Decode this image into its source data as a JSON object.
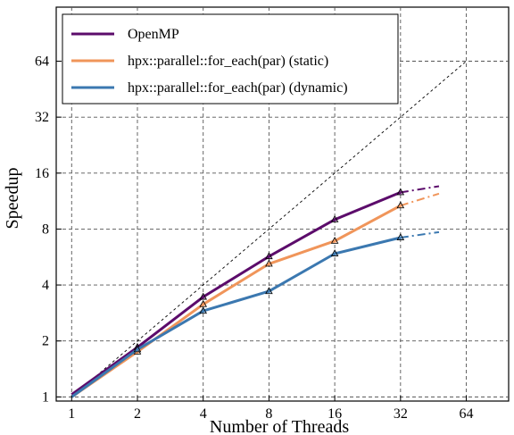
{
  "chart_data": {
    "type": "line",
    "title": "",
    "xlabel": "Number of Threads",
    "ylabel": "Speedup",
    "scale": {
      "x": "log2",
      "y": "log2"
    },
    "xlim": [
      0.85,
      100
    ],
    "ylim": [
      0.95,
      125
    ],
    "x_ticks": [
      1,
      2,
      4,
      8,
      16,
      32,
      64
    ],
    "x_tick_labels": [
      "1",
      "2",
      "4",
      "8",
      "16",
      "32",
      "64"
    ],
    "y_ticks": [
      1,
      2,
      4,
      8,
      16,
      32,
      64
    ],
    "y_tick_labels": [
      "1",
      "2",
      "4",
      "8",
      "16",
      "32",
      "64"
    ],
    "grid": true,
    "legend_position": "top-left",
    "ideal_line": {
      "x": [
        1,
        64
      ],
      "y": [
        1,
        64
      ]
    },
    "series": [
      {
        "name": "OpenMP",
        "color": "#5c0c6b",
        "x": [
          1,
          2,
          4,
          8,
          16,
          32
        ],
        "y": [
          1.03,
          1.85,
          3.45,
          5.7,
          9.0,
          12.6
        ],
        "extrapolation": {
          "x": [
            32,
            48
          ],
          "y": [
            12.6,
            13.6
          ]
        }
      },
      {
        "name": "hpx::parallel::for_each(par) (static)",
        "color": "#f0955a",
        "x": [
          1,
          2,
          4,
          8,
          16,
          32
        ],
        "y": [
          1.0,
          1.75,
          3.15,
          5.2,
          6.9,
          10.7
        ],
        "extrapolation": {
          "x": [
            32,
            48
          ],
          "y": [
            10.7,
            12.4
          ]
        }
      },
      {
        "name": "hpx::parallel::for_each(par) (dynamic)",
        "color": "#3b78b0",
        "x": [
          1,
          2,
          4,
          8,
          16,
          32
        ],
        "y": [
          1.0,
          1.8,
          2.9,
          3.7,
          5.9,
          7.2
        ],
        "extrapolation": {
          "x": [
            32,
            48
          ],
          "y": [
            7.2,
            7.7
          ]
        }
      }
    ]
  }
}
